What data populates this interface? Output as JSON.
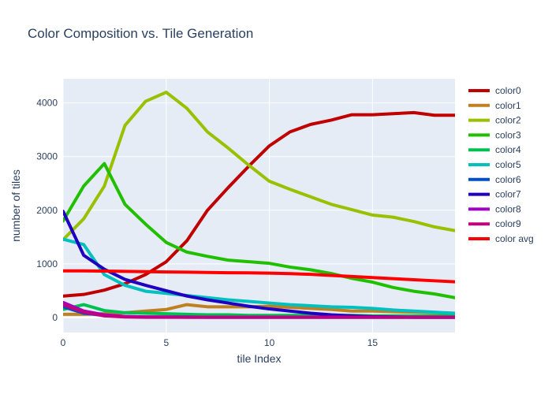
{
  "chart_data": {
    "type": "line",
    "title": "Color Composition vs. Tile Generation",
    "xlabel": "tile Index",
    "ylabel": "number of tiles",
    "xlim": [
      0,
      19
    ],
    "ylim": [
      -280,
      4450
    ],
    "xticks": [
      0,
      5,
      10,
      15
    ],
    "yticks": [
      0,
      1000,
      2000,
      3000,
      4000
    ],
    "x": [
      0,
      1,
      2,
      3,
      4,
      5,
      6,
      7,
      8,
      9,
      10,
      11,
      12,
      13,
      14,
      15,
      16,
      17,
      18,
      19
    ],
    "grid": true,
    "legend_position": "right",
    "background": "#e5ecf6",
    "series": [
      {
        "name": "color0",
        "color": "#c00000",
        "values": [
          400,
          430,
          510,
          630,
          800,
          1040,
          1430,
          2000,
          2420,
          2820,
          3200,
          3460,
          3600,
          3680,
          3780,
          3780,
          3800,
          3820,
          3770,
          3770
        ]
      },
      {
        "name": "color1",
        "color": "#c08020",
        "values": [
          60,
          60,
          70,
          90,
          120,
          150,
          240,
          200,
          200,
          200,
          210,
          190,
          170,
          150,
          120,
          120,
          110,
          100,
          90,
          80
        ]
      },
      {
        "name": "color2",
        "color": "#9ac000",
        "values": [
          1450,
          1840,
          2450,
          3580,
          4030,
          4200,
          3900,
          3460,
          3160,
          2840,
          2540,
          2390,
          2250,
          2110,
          2010,
          1910,
          1870,
          1790,
          1690,
          1620
        ]
      },
      {
        "name": "color3",
        "color": "#20c000",
        "values": [
          1800,
          2450,
          2870,
          2110,
          1740,
          1400,
          1220,
          1140,
          1070,
          1040,
          1010,
          940,
          890,
          820,
          730,
          660,
          560,
          490,
          440,
          370
        ]
      },
      {
        "name": "color4",
        "color": "#00c050",
        "values": [
          150,
          240,
          130,
          90,
          80,
          70,
          60,
          50,
          50,
          40,
          40,
          40,
          40,
          40,
          40,
          30,
          30,
          30,
          30,
          30
        ]
      },
      {
        "name": "color5",
        "color": "#00c0c0",
        "values": [
          1460,
          1360,
          800,
          600,
          490,
          450,
          410,
          370,
          330,
          300,
          270,
          240,
          220,
          200,
          190,
          170,
          140,
          120,
          100,
          80
        ]
      },
      {
        "name": "color6",
        "color": "#0050c0",
        "values": [
          200,
          80,
          40,
          20,
          10,
          10,
          10,
          5,
          5,
          5,
          5,
          5,
          5,
          5,
          5,
          5,
          5,
          5,
          5,
          5
        ]
      },
      {
        "name": "color7",
        "color": "#1f00c0",
        "values": [
          1980,
          1160,
          900,
          710,
          600,
          500,
          400,
          330,
          270,
          210,
          160,
          120,
          80,
          50,
          30,
          15,
          10,
          5,
          5,
          5
        ]
      },
      {
        "name": "color8",
        "color": "#a000c0",
        "values": [
          280,
          120,
          50,
          20,
          10,
          10,
          5,
          5,
          5,
          5,
          5,
          5,
          5,
          5,
          5,
          5,
          5,
          5,
          5,
          5
        ]
      },
      {
        "name": "color9",
        "color": "#c00080",
        "values": [
          240,
          100,
          30,
          10,
          5,
          5,
          5,
          5,
          5,
          5,
          5,
          5,
          5,
          5,
          5,
          5,
          5,
          5,
          5,
          5
        ]
      },
      {
        "name": "color avg",
        "color": "#ff0000",
        "values": [
          870,
          870,
          865,
          860,
          855,
          850,
          845,
          840,
          835,
          832,
          828,
          818,
          805,
          785,
          765,
          745,
          725,
          705,
          685,
          665
        ]
      }
    ]
  }
}
